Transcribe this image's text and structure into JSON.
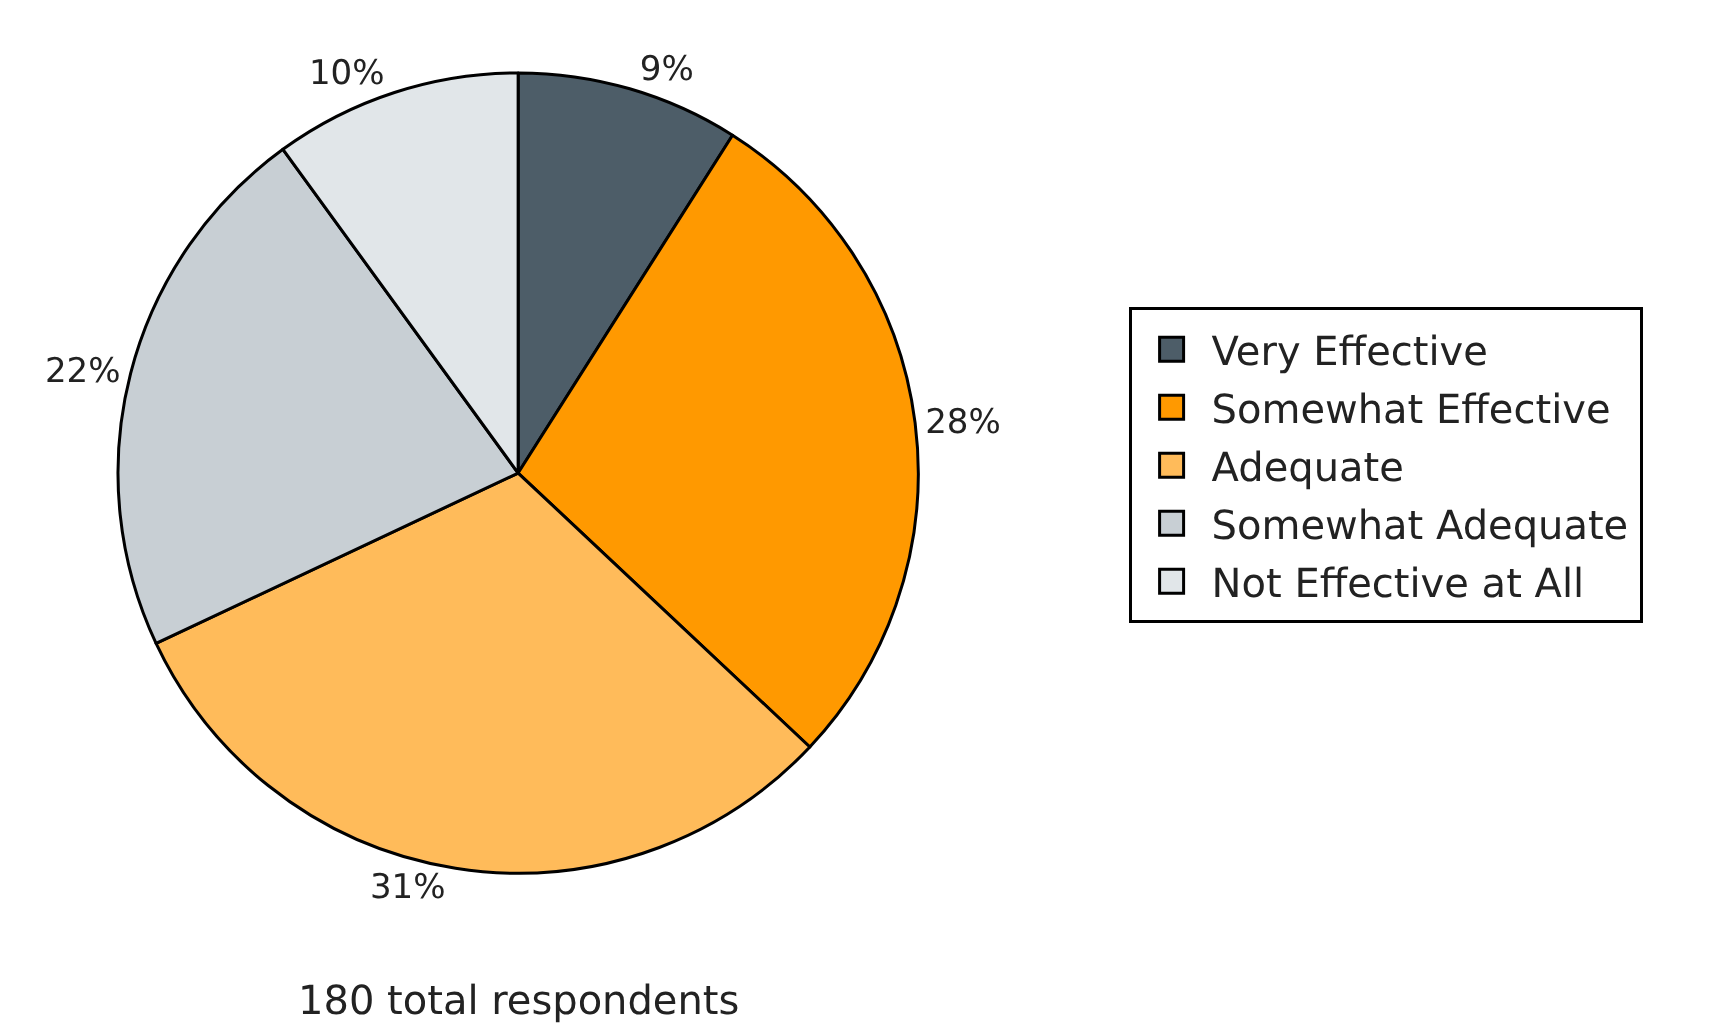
{
  "chart_data": {
    "type": "pie",
    "categories": [
      "Very Effective",
      "Somewhat Effective",
      "Adequate",
      "Somewhat Adequate",
      "Not Effective at All"
    ],
    "values": [
      9,
      28,
      31,
      22,
      10
    ],
    "value_labels": [
      "9%",
      "28%",
      "31%",
      "22%",
      "10%"
    ],
    "colors": [
      "#4d5d68",
      "#ff9900",
      "#ffbb5a",
      "#c8cfd4",
      "#e1e6e9"
    ],
    "legend": "right",
    "annotations": [
      "180 total respondents"
    ]
  }
}
